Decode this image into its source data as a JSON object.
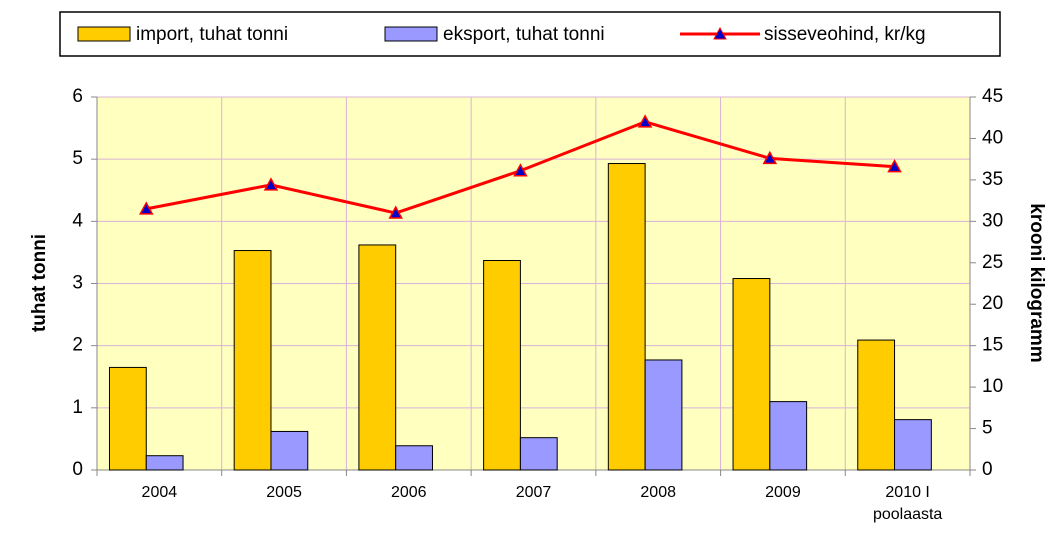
{
  "chart_data": {
    "type": "bar_line",
    "categories": [
      "2004",
      "2005",
      "2006",
      "2007",
      "2008",
      "2009",
      "2010 I poolaasta"
    ],
    "series": [
      {
        "name": "import, tuhat tonni",
        "color": "#ffcc00",
        "type": "bar",
        "values": [
          1.65,
          3.53,
          3.62,
          3.37,
          4.93,
          3.08,
          2.09
        ]
      },
      {
        "name": "eksport, tuhat tonni",
        "color": "#9999ff",
        "type": "bar",
        "values": [
          0.23,
          0.62,
          0.39,
          0.52,
          1.77,
          1.1,
          0.81
        ]
      },
      {
        "name": "sisseveohind, kr/kg",
        "color": "#ff0000",
        "type": "line",
        "axis": "y2",
        "values": [
          31.5,
          34.4,
          31.0,
          36.1,
          42.0,
          37.6,
          36.6
        ]
      }
    ],
    "ylabel": "tuhat tonni",
    "y2label": "krooni kilogramm",
    "ylim": [
      0,
      6
    ],
    "yticks": [
      0,
      1,
      2,
      3,
      4,
      5,
      6
    ],
    "y2lim": [
      0,
      45
    ],
    "y2ticks": [
      0,
      5,
      10,
      15,
      20,
      25,
      30,
      35,
      40,
      45
    ],
    "grid": true,
    "legend": "top"
  }
}
